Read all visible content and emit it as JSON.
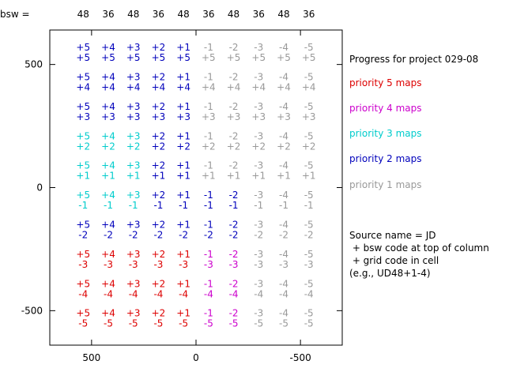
{
  "header": {
    "label": "bsw =",
    "bsw_codes": [
      "48",
      "36",
      "48",
      "36",
      "48",
      "36",
      "48",
      "36",
      "48",
      "36"
    ]
  },
  "legend": {
    "title": "Progress for project 029-08",
    "items": [
      {
        "label": "priority 5 maps",
        "color": "#dd0000"
      },
      {
        "label": "priority 4 maps",
        "color": "#cc00cc"
      },
      {
        "label": "priority 3 maps",
        "color": "#00cccc"
      },
      {
        "label": "priority 2 maps",
        "color": "#0000bb"
      },
      {
        "label": "priority 1 maps",
        "color": "#999999"
      }
    ],
    "note_lines": [
      "Source name = JD",
      " + bsw code at top of column",
      " + grid code in cell",
      "(e.g., UD48+1-4)"
    ]
  },
  "chart_data": {
    "type": "table",
    "xlim": [
      700,
      -700
    ],
    "ylim": [
      -640,
      640
    ],
    "x_ticks": [
      500,
      0,
      -500
    ],
    "x_tick_labels": [
      "500",
      "0",
      "-500"
    ],
    "y_ticks": [
      500,
      0,
      -500
    ],
    "y_tick_labels": [
      "500",
      "0",
      "-500"
    ],
    "grid": false,
    "legend_position": "right",
    "column_x_centers": [
      540,
      420,
      300,
      180,
      60,
      -60,
      -180,
      -300,
      -420,
      -540
    ],
    "row_y_centers": [
      550,
      430,
      310,
      190,
      70,
      -50,
      -170,
      -290,
      -410,
      -530
    ],
    "column_codes": [
      "+5",
      "+4",
      "+3",
      "+2",
      "+1",
      "-1",
      "-2",
      "-3",
      "-4",
      "-5"
    ],
    "row_codes": [
      "+5",
      "+4",
      "+3",
      "+2",
      "+1",
      "-1",
      "-2",
      "-3",
      "-4",
      "-5"
    ],
    "priority_colors": {
      "5": "#dd0000",
      "4": "#cc00cc",
      "3": "#00cccc",
      "2": "#0000bb",
      "1": "#999999"
    },
    "cell_priority": [
      [
        2,
        2,
        2,
        2,
        2,
        1,
        1,
        1,
        1,
        1
      ],
      [
        2,
        2,
        2,
        2,
        2,
        1,
        1,
        1,
        1,
        1
      ],
      [
        2,
        2,
        2,
        2,
        2,
        1,
        1,
        1,
        1,
        1
      ],
      [
        3,
        3,
        3,
        2,
        2,
        1,
        1,
        1,
        1,
        1
      ],
      [
        3,
        3,
        3,
        2,
        2,
        1,
        1,
        1,
        1,
        1
      ],
      [
        3,
        3,
        3,
        2,
        2,
        2,
        2,
        1,
        1,
        1
      ],
      [
        2,
        2,
        2,
        2,
        2,
        2,
        2,
        1,
        1,
        1
      ],
      [
        5,
        5,
        5,
        5,
        5,
        4,
        4,
        1,
        1,
        1
      ],
      [
        5,
        5,
        5,
        5,
        5,
        4,
        4,
        1,
        1,
        1
      ],
      [
        5,
        5,
        5,
        5,
        5,
        4,
        4,
        1,
        1,
        1
      ]
    ]
  }
}
